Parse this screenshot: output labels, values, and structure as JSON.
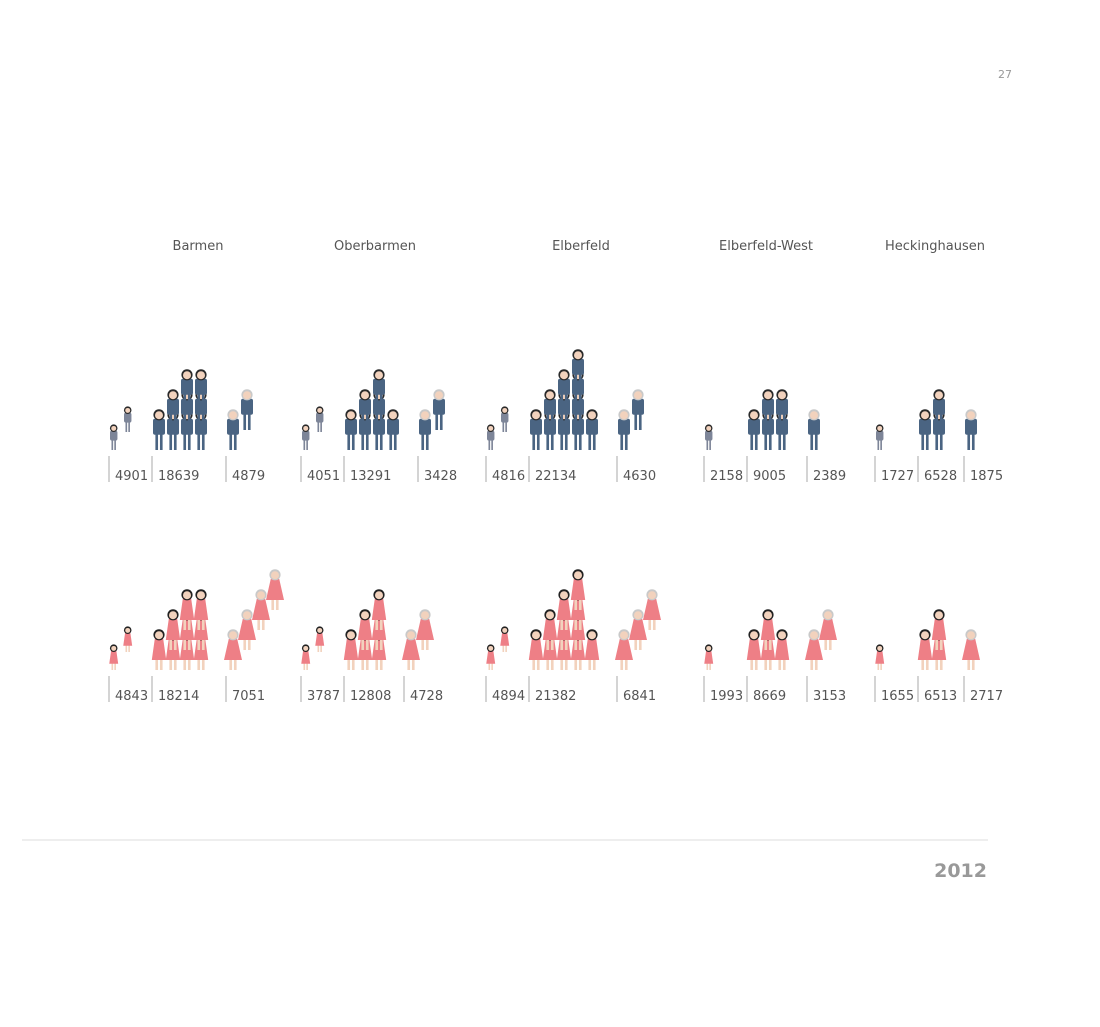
{
  "page_number": "27",
  "year": "2012",
  "districts": [
    {
      "name": "Barmen",
      "male": [
        4901,
        18639,
        4879
      ],
      "female": [
        4843,
        18214,
        7051
      ]
    },
    {
      "name": "Oberbarmen",
      "male": [
        4051,
        13291,
        3428
      ],
      "female": [
        3787,
        12808,
        4728
      ]
    },
    {
      "name": "Elberfeld",
      "male": [
        4816,
        22134,
        4630
      ],
      "female": [
        4894,
        21382,
        6841
      ]
    },
    {
      "name": "Elberfeld-West",
      "male": [
        2158,
        9005,
        2389
      ],
      "female": [
        1993,
        8669,
        3153
      ]
    },
    {
      "name": "Heckinghausen",
      "male": [
        1727,
        6528,
        1875
      ],
      "female": [
        1655,
        6513,
        2717
      ]
    }
  ]
}
